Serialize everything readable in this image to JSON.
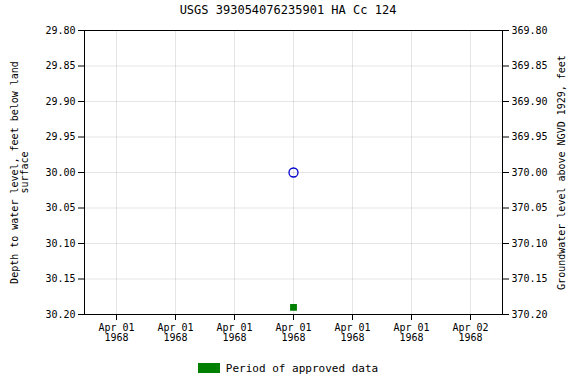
{
  "chart_data": {
    "type": "scatter",
    "title": "USGS 393054076235901 HA Cc 124",
    "categories": [
      "Apr 01\n1968",
      "Apr 01\n1968",
      "Apr 01\n1968",
      "Apr 01\n1968",
      "Apr 01\n1968",
      "Apr 01\n1968",
      "Apr 02\n1968"
    ],
    "ylabel": "Depth to water level, feet below land\nsurface",
    "y2label": "Groundwater level above NGVD 1929, feet",
    "ylim": [
      30.2,
      29.8
    ],
    "yticks": [
      {
        "value": 29.8,
        "label": "29.80"
      },
      {
        "value": 29.85,
        "label": "29.85"
      },
      {
        "value": 29.9,
        "label": "29.90"
      },
      {
        "value": 29.95,
        "label": "29.95"
      },
      {
        "value": 30.0,
        "label": "30.00"
      },
      {
        "value": 30.05,
        "label": "30.05"
      },
      {
        "value": 30.1,
        "label": "30.10"
      },
      {
        "value": 30.15,
        "label": "30.15"
      },
      {
        "value": 30.2,
        "label": "30.20"
      }
    ],
    "y2lim": [
      370.2,
      369.8
    ],
    "y2ticks": [
      {
        "value": 370.2,
        "label": "370.20"
      },
      {
        "value": 370.15,
        "label": "370.15"
      },
      {
        "value": 370.1,
        "label": "370.10"
      },
      {
        "value": 370.05,
        "label": "370.05"
      },
      {
        "value": 370.0,
        "label": "370.00"
      },
      {
        "value": 369.95,
        "label": "369.95"
      },
      {
        "value": 369.9,
        "label": "369.90"
      },
      {
        "value": 369.85,
        "label": "369.85"
      },
      {
        "value": 369.8,
        "label": "369.80"
      }
    ],
    "series": [
      {
        "color": "#0000cc",
        "marker": "circle",
        "values": [
          null,
          null,
          null,
          30.0,
          null,
          null,
          null
        ]
      },
      {
        "name": "Period of approved data",
        "color": "#008000",
        "marker": "square",
        "values": [
          null,
          null,
          null,
          30.19,
          null,
          null,
          null
        ]
      }
    ],
    "grid": true,
    "legend": "bottom"
  }
}
